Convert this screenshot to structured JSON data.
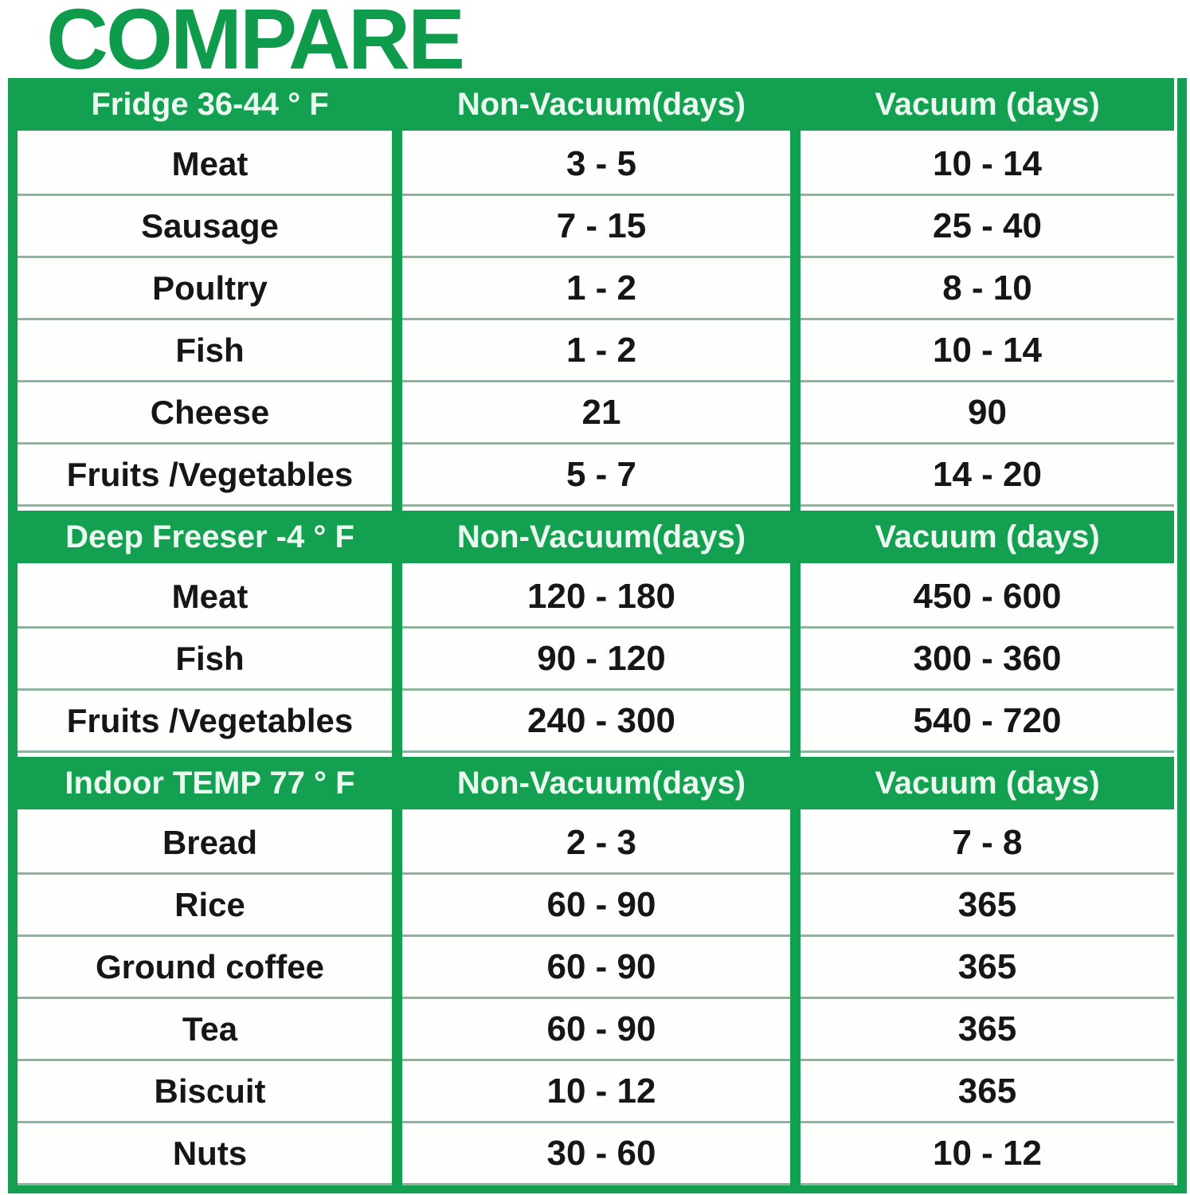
{
  "title": "COMPARE",
  "colors": {
    "accent_green": "#14a051",
    "title_green": "#0f9b4c",
    "header_text": "#ecf9f1",
    "cell_text": "#161616",
    "row_separator": "#8fb49e",
    "cell_background": "#fdfffd"
  },
  "chart_data": {
    "type": "table",
    "title": "COMPARE",
    "column_headers": [
      "Non-Vacuum(days)",
      "Vacuum (days)"
    ],
    "units": "days",
    "sections": [
      {
        "header": "Fridge 36-44 ° F",
        "non_vacuum_label": "Non-Vacuum(days)",
        "vacuum_label": "Vacuum (days)",
        "rows": [
          {
            "item": "Meat",
            "non_vacuum": "3 - 5",
            "vacuum": "10 - 14"
          },
          {
            "item": "Sausage",
            "non_vacuum": "7 - 15",
            "vacuum": "25 - 40"
          },
          {
            "item": "Poultry",
            "non_vacuum": "1 - 2",
            "vacuum": "8 - 10"
          },
          {
            "item": "Fish",
            "non_vacuum": "1 - 2",
            "vacuum": "10 - 14"
          },
          {
            "item": "Cheese",
            "non_vacuum": "21",
            "vacuum": "90"
          },
          {
            "item": "Fruits /Vegetables",
            "non_vacuum": "5 - 7",
            "vacuum": "14 - 20"
          }
        ]
      },
      {
        "header": "Deep Freeser -4 ° F",
        "non_vacuum_label": "Non-Vacuum(days)",
        "vacuum_label": "Vacuum (days)",
        "rows": [
          {
            "item": "Meat",
            "non_vacuum": "120 - 180",
            "vacuum": "450 - 600"
          },
          {
            "item": "Fish",
            "non_vacuum": "90 - 120",
            "vacuum": "300 - 360"
          },
          {
            "item": "Fruits /Vegetables",
            "non_vacuum": "240 - 300",
            "vacuum": "540 - 720"
          }
        ]
      },
      {
        "header": "Indoor TEMP 77 ° F",
        "non_vacuum_label": "Non-Vacuum(days)",
        "vacuum_label": "Vacuum (days)",
        "rows": [
          {
            "item": "Bread",
            "non_vacuum": "2 - 3",
            "vacuum": "7 - 8"
          },
          {
            "item": "Rice",
            "non_vacuum": "60 - 90",
            "vacuum": "365"
          },
          {
            "item": "Ground coffee",
            "non_vacuum": "60 - 90",
            "vacuum": "365"
          },
          {
            "item": "Tea",
            "non_vacuum": "60 - 90",
            "vacuum": "365"
          },
          {
            "item": "Biscuit",
            "non_vacuum": "10 - 12",
            "vacuum": "365"
          },
          {
            "item": "Nuts",
            "non_vacuum": "30 - 60",
            "vacuum": "10 - 12"
          }
        ]
      }
    ]
  }
}
